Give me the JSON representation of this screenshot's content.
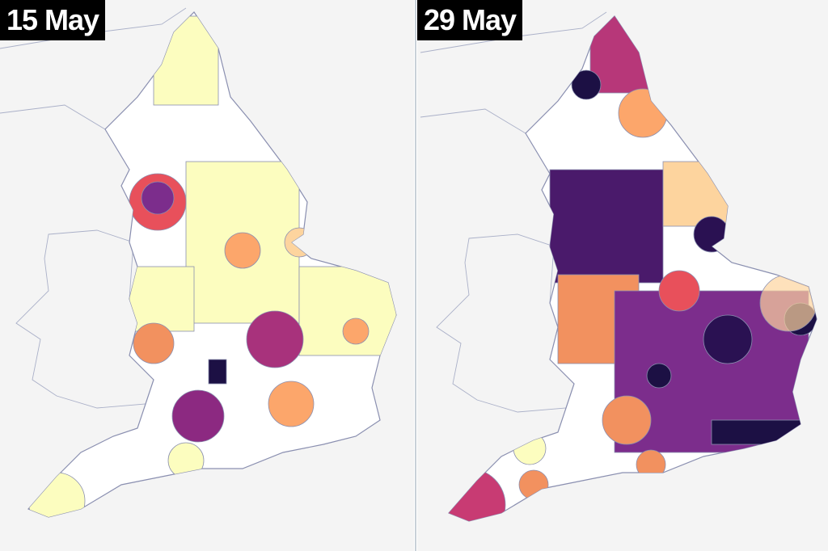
{
  "panels": [
    {
      "label": "15 May"
    },
    {
      "label": "29 May"
    }
  ]
}
